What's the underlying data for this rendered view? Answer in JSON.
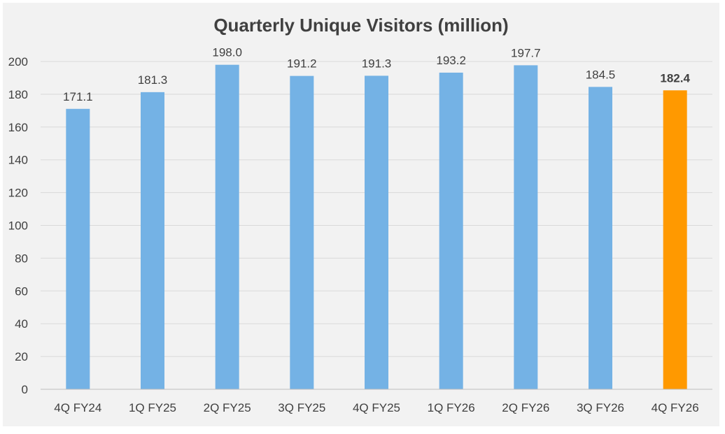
{
  "chart_data": {
    "type": "bar",
    "title": "Quarterly Unique Visitors (million)",
    "xlabel": "",
    "ylabel": "",
    "categories": [
      "4Q FY24",
      "1Q FY25",
      "2Q FY25",
      "3Q FY25",
      "4Q FY25",
      "1Q FY26",
      "2Q FY26",
      "3Q FY26",
      "4Q FY26"
    ],
    "values": [
      171.1,
      181.3,
      198.0,
      191.2,
      191.3,
      193.2,
      197.7,
      184.5,
      182.4
    ],
    "value_labels": [
      "171.1",
      "181.3",
      "198.0",
      "191.2",
      "191.3",
      "193.2",
      "197.7",
      "184.5",
      "182.4"
    ],
    "yticks": [
      "0",
      "20",
      "40",
      "60",
      "80",
      "100",
      "120",
      "140",
      "160",
      "180",
      "200"
    ],
    "ylim": [
      0,
      200
    ],
    "grid": true,
    "legend": "none",
    "highlight_index": 8,
    "colors": {
      "bar": "#74b2e5",
      "highlight": "#ff9900",
      "grid": "#d9d9d9",
      "axis": "#bfbfbf",
      "background": "#f2f2f2"
    }
  }
}
